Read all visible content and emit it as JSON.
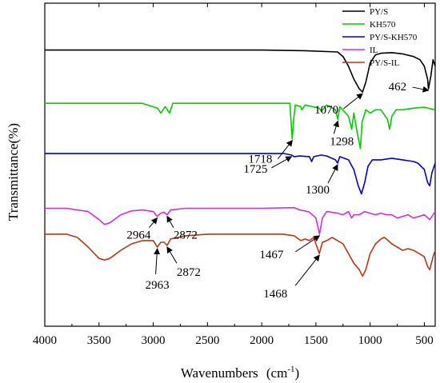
{
  "chart_data": {
    "type": "line",
    "xlabel": "Wavenumbers",
    "xlabel_unit": "(cm",
    "xlabel_sup": "-1",
    "xlabel_close": ")",
    "ylabel": "Transmittance(%)",
    "xlim": [
      4000,
      400
    ],
    "xticks": [
      4000,
      3500,
      3000,
      2500,
      2000,
      1500,
      1000,
      500
    ],
    "y_ticks_shown": false,
    "legend_position": "top-right",
    "series": [
      {
        "name": "PY/S",
        "color": "#000000",
        "baseline": 0.855,
        "points": [
          [
            4000,
            0
          ],
          [
            3500,
            0
          ],
          [
            3000,
            0
          ],
          [
            2500,
            0
          ],
          [
            2000,
            0
          ],
          [
            1600,
            -0.002
          ],
          [
            1300,
            -0.006
          ],
          [
            1250,
            -0.02
          ],
          [
            1200,
            -0.05
          ],
          [
            1150,
            -0.09
          ],
          [
            1100,
            -0.12
          ],
          [
            1070,
            -0.13
          ],
          [
            1040,
            -0.1
          ],
          [
            1000,
            -0.04
          ],
          [
            950,
            -0.015
          ],
          [
            900,
            -0.01
          ],
          [
            800,
            -0.008
          ],
          [
            700,
            -0.012
          ],
          [
            600,
            -0.02
          ],
          [
            540,
            -0.03
          ],
          [
            500,
            -0.05
          ],
          [
            470,
            -0.09
          ],
          [
            462,
            -0.12
          ],
          [
            440,
            -0.08
          ],
          [
            420,
            -0.03
          ],
          [
            400,
            -0.05
          ]
        ],
        "annotations": [
          {
            "label": "1070",
            "x": 1070
          },
          {
            "label": "462",
            "x": 462
          }
        ]
      },
      {
        "name": "KH570",
        "color": "#00cc00",
        "baseline": 0.69,
        "points": [
          [
            4000,
            0
          ],
          [
            3500,
            0
          ],
          [
            3100,
            0
          ],
          [
            2960,
            -0.015
          ],
          [
            2930,
            -0.03
          ],
          [
            2890,
            -0.01
          ],
          [
            2850,
            -0.03
          ],
          [
            2820,
            0
          ],
          [
            2000,
            0
          ],
          [
            1740,
            0
          ],
          [
            1725,
            -0.08
          ],
          [
            1718,
            -0.11
          ],
          [
            1705,
            -0.05
          ],
          [
            1690,
            -0.005
          ],
          [
            1640,
            -0.01
          ],
          [
            1630,
            -0.02
          ],
          [
            1600,
            -0.005
          ],
          [
            1470,
            -0.015
          ],
          [
            1450,
            -0.025
          ],
          [
            1400,
            -0.005
          ],
          [
            1320,
            -0.02
          ],
          [
            1298,
            -0.05
          ],
          [
            1280,
            -0.01
          ],
          [
            1200,
            -0.04
          ],
          [
            1170,
            -0.08
          ],
          [
            1150,
            -0.03
          ],
          [
            1120,
            -0.09
          ],
          [
            1090,
            -0.14
          ],
          [
            1075,
            -0.06
          ],
          [
            1040,
            -0.02
          ],
          [
            1000,
            -0.03
          ],
          [
            950,
            -0.02
          ],
          [
            900,
            -0.02
          ],
          [
            840,
            -0.05
          ],
          [
            820,
            -0.08
          ],
          [
            800,
            -0.04
          ],
          [
            760,
            -0.02
          ],
          [
            700,
            -0.02
          ],
          [
            600,
            -0.015
          ],
          [
            500,
            -0.012
          ],
          [
            400,
            -0.02
          ]
        ],
        "annotations": [
          {
            "label": "1718",
            "x": 1718
          },
          {
            "label": "1298",
            "x": 1298
          }
        ]
      },
      {
        "name": "PY/S-KH570",
        "color": "#0000cc",
        "baseline": 0.535,
        "points": [
          [
            4000,
            0
          ],
          [
            3500,
            0
          ],
          [
            3000,
            0
          ],
          [
            2500,
            0
          ],
          [
            2000,
            0
          ],
          [
            1800,
            0
          ],
          [
            1725,
            -0.005
          ],
          [
            1700,
            -0.01
          ],
          [
            1650,
            -0.008
          ],
          [
            1560,
            -0.01
          ],
          [
            1540,
            -0.025
          ],
          [
            1520,
            -0.01
          ],
          [
            1450,
            -0.005
          ],
          [
            1400,
            -0.008
          ],
          [
            1320,
            -0.02
          ],
          [
            1300,
            -0.03
          ],
          [
            1280,
            -0.01
          ],
          [
            1200,
            -0.02
          ],
          [
            1150,
            -0.05
          ],
          [
            1110,
            -0.1
          ],
          [
            1080,
            -0.125
          ],
          [
            1050,
            -0.09
          ],
          [
            1020,
            -0.04
          ],
          [
            980,
            -0.02
          ],
          [
            900,
            -0.02
          ],
          [
            800,
            -0.015
          ],
          [
            700,
            -0.02
          ],
          [
            600,
            -0.025
          ],
          [
            560,
            -0.03
          ],
          [
            500,
            -0.05
          ],
          [
            470,
            -0.09
          ],
          [
            450,
            -0.1
          ],
          [
            430,
            -0.06
          ],
          [
            400,
            -0.03
          ]
        ],
        "annotations": [
          {
            "label": "1725",
            "x": 1725
          },
          {
            "label": "1300",
            "x": 1300
          }
        ]
      },
      {
        "name": "IL",
        "color": "#cc33cc",
        "baseline": 0.365,
        "points": [
          [
            4000,
            0
          ],
          [
            3800,
            0
          ],
          [
            3600,
            -0.01
          ],
          [
            3500,
            -0.035
          ],
          [
            3450,
            -0.05
          ],
          [
            3400,
            -0.045
          ],
          [
            3300,
            -0.02
          ],
          [
            3200,
            -0.008
          ],
          [
            3100,
            -0.005
          ],
          [
            3000,
            -0.01
          ],
          [
            2964,
            -0.025
          ],
          [
            2930,
            -0.015
          ],
          [
            2900,
            -0.012
          ],
          [
            2872,
            -0.02
          ],
          [
            2840,
            -0.005
          ],
          [
            2700,
            0
          ],
          [
            2500,
            0
          ],
          [
            2000,
            0
          ],
          [
            1700,
            0.002
          ],
          [
            1650,
            -0.005
          ],
          [
            1600,
            -0.008
          ],
          [
            1560,
            -0.012
          ],
          [
            1500,
            -0.03
          ],
          [
            1467,
            -0.08
          ],
          [
            1440,
            -0.03
          ],
          [
            1400,
            -0.01
          ],
          [
            1300,
            -0.015
          ],
          [
            1250,
            -0.02
          ],
          [
            1200,
            -0.01
          ],
          [
            1170,
            -0.03
          ],
          [
            1150,
            -0.02
          ],
          [
            1100,
            -0.02
          ],
          [
            1050,
            -0.01
          ],
          [
            1000,
            -0.015
          ],
          [
            950,
            -0.02
          ],
          [
            900,
            -0.015
          ],
          [
            850,
            -0.02
          ],
          [
            800,
            -0.02
          ],
          [
            750,
            -0.03
          ],
          [
            700,
            -0.025
          ],
          [
            650,
            -0.02
          ],
          [
            600,
            -0.03
          ],
          [
            500,
            -0.02
          ],
          [
            450,
            -0.035
          ],
          [
            400,
            -0.01
          ]
        ],
        "annotations": [
          {
            "label": "2964",
            "x": 2964
          },
          {
            "label": "2872",
            "x": 2872
          },
          {
            "label": "1467",
            "x": 1467
          }
        ]
      },
      {
        "name": "PY/S-IL",
        "color": "#b03a1a",
        "baseline": 0.285,
        "points": [
          [
            4000,
            0
          ],
          [
            3800,
            0
          ],
          [
            3700,
            -0.01
          ],
          [
            3600,
            -0.04
          ],
          [
            3500,
            -0.075
          ],
          [
            3450,
            -0.08
          ],
          [
            3400,
            -0.075
          ],
          [
            3300,
            -0.05
          ],
          [
            3200,
            -0.03
          ],
          [
            3100,
            -0.02
          ],
          [
            3000,
            -0.02
          ],
          [
            2963,
            -0.04
          ],
          [
            2930,
            -0.025
          ],
          [
            2900,
            -0.025
          ],
          [
            2872,
            -0.035
          ],
          [
            2840,
            -0.015
          ],
          [
            2700,
            -0.005
          ],
          [
            2500,
            0
          ],
          [
            2000,
            0
          ],
          [
            1800,
            0
          ],
          [
            1700,
            -0.005
          ],
          [
            1640,
            -0.02
          ],
          [
            1600,
            -0.015
          ],
          [
            1560,
            -0.02
          ],
          [
            1520,
            -0.01
          ],
          [
            1500,
            -0.03
          ],
          [
            1468,
            -0.06
          ],
          [
            1440,
            -0.025
          ],
          [
            1400,
            -0.02
          ],
          [
            1350,
            -0.01
          ],
          [
            1300,
            -0.02
          ],
          [
            1250,
            -0.03
          ],
          [
            1200,
            -0.06
          ],
          [
            1150,
            -0.09
          ],
          [
            1100,
            -0.11
          ],
          [
            1070,
            -0.13
          ],
          [
            1040,
            -0.11
          ],
          [
            1000,
            -0.06
          ],
          [
            950,
            -0.03
          ],
          [
            900,
            -0.015
          ],
          [
            870,
            -0.01
          ],
          [
            850,
            -0.015
          ],
          [
            800,
            -0.03
          ],
          [
            750,
            -0.04
          ],
          [
            700,
            -0.05
          ],
          [
            650,
            -0.045
          ],
          [
            600,
            -0.05
          ],
          [
            550,
            -0.06
          ],
          [
            500,
            -0.07
          ],
          [
            470,
            -0.1
          ],
          [
            450,
            -0.11
          ],
          [
            420,
            -0.07
          ],
          [
            400,
            -0.05
          ]
        ],
        "annotations": [
          {
            "label": "2963",
            "x": 2963
          },
          {
            "label": "2872",
            "x": 2872
          },
          {
            "label": "1468",
            "x": 1468
          }
        ]
      }
    ]
  }
}
